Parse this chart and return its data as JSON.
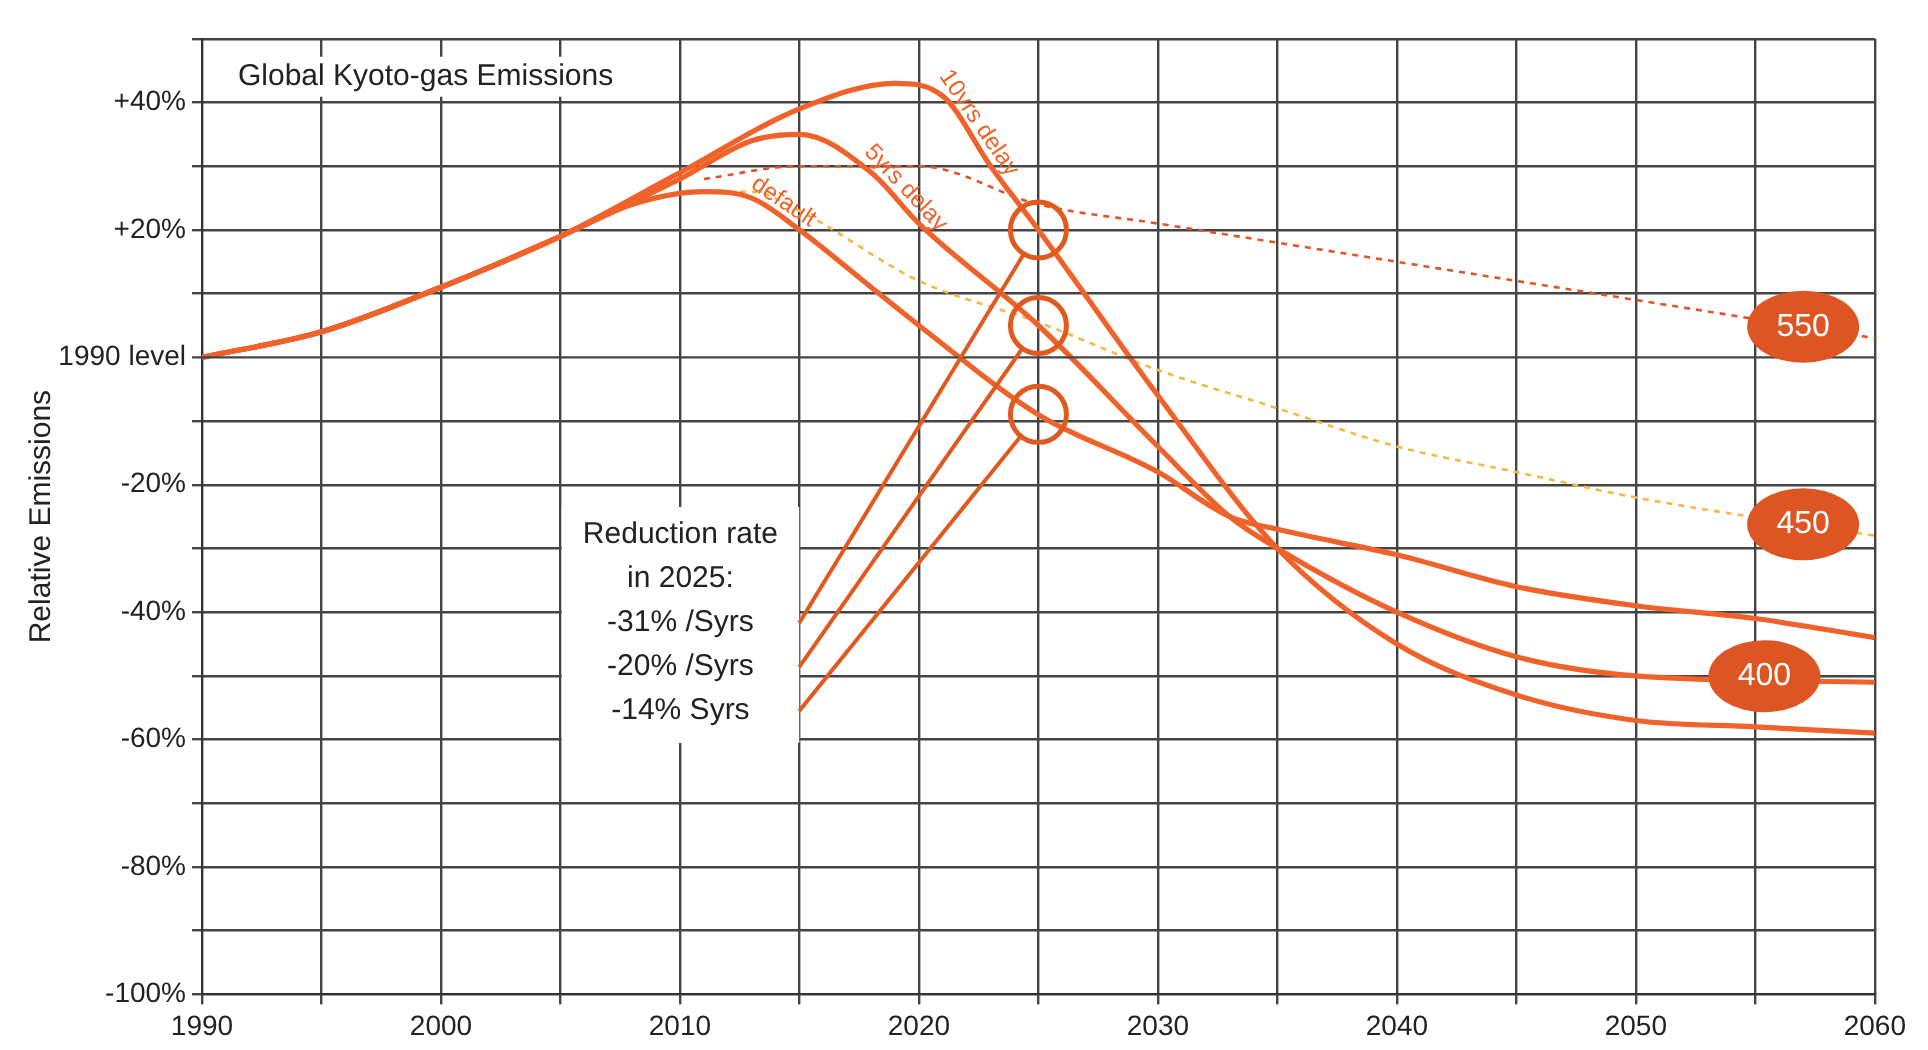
{
  "chart_data": {
    "type": "line",
    "title": "Global Kyoto-gas Emissions",
    "ylabel": "Relative Emissions",
    "xlim": [
      1990,
      2060
    ],
    "ylim": [
      -100,
      50
    ],
    "xticks": [
      1990,
      {
        "value": 1995,
        "label": null
      },
      2000,
      {
        "value": 2005,
        "label": null
      },
      2010,
      {
        "value": 2015,
        "label": null
      },
      2020,
      {
        "value": 2025,
        "label": null
      },
      2030,
      {
        "value": 2035,
        "label": null
      },
      2040,
      {
        "value": 2045,
        "label": null
      },
      2050,
      {
        "value": 2055,
        "label": null
      },
      2060
    ],
    "yticks": [
      {
        "value": -100,
        "label": "-100%"
      },
      {
        "value": -90,
        "label": null
      },
      {
        "value": -80,
        "label": "-80%"
      },
      {
        "value": -70,
        "label": null
      },
      {
        "value": -60,
        "label": "-60%"
      },
      {
        "value": -50,
        "label": null
      },
      {
        "value": -40,
        "label": "-40%"
      },
      {
        "value": -30,
        "label": null
      },
      {
        "value": -20,
        "label": "-20%"
      },
      {
        "value": -10,
        "label": null
      },
      {
        "value": 10,
        "label": null
      },
      {
        "value": 20,
        "label": "+20%"
      },
      {
        "value": 30,
        "label": null
      },
      {
        "value": 40,
        "label": "+40%"
      },
      {
        "value": 50,
        "label": null
      }
    ],
    "grid": true,
    "series": [
      {
        "name": "default",
        "color": "#f0622a",
        "line_style": "solid",
        "x": [
          1990,
          1995,
          2000,
          2005,
          2008,
          2011,
          2013,
          2015,
          2018,
          2020,
          2025,
          2030,
          2033,
          2035,
          2040,
          2045,
          2050,
          2055,
          2060
        ],
        "values": [
          0,
          4,
          11,
          19,
          24,
          26,
          25,
          20,
          11,
          5,
          -9,
          -18,
          -25,
          -27,
          -31,
          -36,
          -39,
          -41,
          -44
        ]
      },
      {
        "name": "5yrs delay",
        "color": "#f0622a",
        "line_style": "solid",
        "x": [
          1990,
          1995,
          2000,
          2005,
          2010,
          2013,
          2015,
          2018,
          2020,
          2025,
          2030,
          2033,
          2035,
          2040,
          2045,
          2050,
          2060
        ],
        "values": [
          0,
          4,
          11,
          19,
          28,
          34,
          35,
          29,
          21,
          5,
          -14,
          -25,
          -30,
          -40,
          -47,
          -50,
          -51
        ]
      },
      {
        "name": "10yrs delay",
        "color": "#f0622a",
        "line_style": "solid",
        "x": [
          1990,
          1995,
          2000,
          2005,
          2010,
          2015,
          2019,
          2021,
          2023,
          2025,
          2030,
          2035,
          2040,
          2045,
          2050,
          2055,
          2060
        ],
        "values": [
          0,
          4,
          11,
          19,
          29,
          39,
          43,
          41,
          30,
          20,
          -6,
          -30,
          -45,
          -53,
          -57,
          -58,
          -59
        ]
      },
      {
        "name": "550",
        "color": "#e0552a",
        "line_style": "dotted",
        "x": [
          2011,
          2015,
          2020,
          2025,
          2030,
          2040,
          2050,
          2060
        ],
        "values": [
          28,
          30,
          30,
          24,
          21,
          15,
          9,
          3
        ]
      },
      {
        "name": "450",
        "color": "#f7b844",
        "line_style": "dotted",
        "x": [
          2011,
          2013,
          2015,
          2020,
          2025,
          2030,
          2035,
          2040,
          2045,
          2050,
          2060
        ],
        "values": [
          26,
          26,
          23,
          12,
          5.5,
          -2,
          -8,
          -14,
          -18,
          -22,
          -28
        ]
      }
    ],
    "annotations": [
      "Reduction rate in 2025:",
      "-31% /Syrs",
      "-20% /Syrs",
      "-14% Syrs",
      "400"
    ],
    "ref_lines": [
      {
        "axis": "y",
        "value": 0,
        "label": "1990 level"
      }
    ],
    "legend": false
  }
}
